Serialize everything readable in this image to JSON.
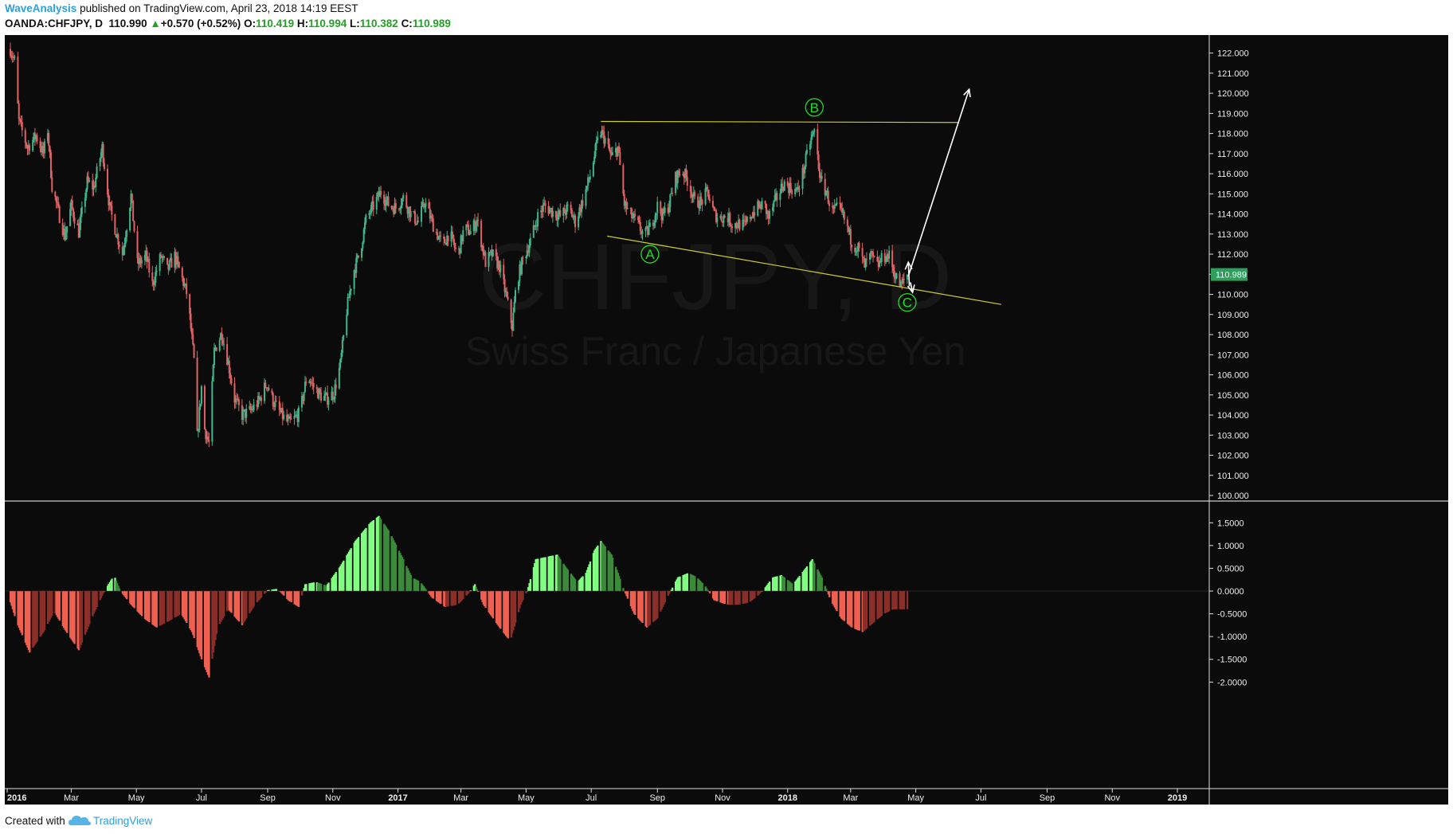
{
  "header": {
    "author": "WaveAnalysis",
    "published_text": "published on TradingView.com, April 23, 2018 14:19 EEST",
    "symbol": "OANDA:CHFJPY, D",
    "price": "110.990",
    "change": "+0.570 (+0.52%)",
    "o_label": "O:",
    "o_value": "110.419",
    "h_label": "H:",
    "h_value": "110.994",
    "l_label": "L:",
    "l_value": "110.382",
    "c_label": "C:",
    "c_value": "110.989"
  },
  "watermark": {
    "symbol": "CHFJPY, D",
    "description": "Swiss Franc / Japanese Yen"
  },
  "footer": {
    "created_with": "Created with",
    "brand": "TradingView"
  },
  "colors": {
    "background": "#0b0b0b",
    "up_candle": "#3fb68b",
    "down_candle": "#e06264",
    "trendline": "#cccc33",
    "wave_label": "#22dd22",
    "hist_pos_bright": "#80ff80",
    "hist_pos_dark": "#3b8b3b",
    "hist_neg_bright": "#f06050",
    "hist_neg_dark": "#8b2e28",
    "last_price_badge": "#2e9e5c"
  },
  "chart_data": [
    {
      "type": "candlestick",
      "symbol": "OANDA:CHFJPY",
      "timeframe": "D",
      "ylim": [
        100,
        122.5
      ],
      "y_ticks": [
        "122.000",
        "121.000",
        "120.000",
        "119.000",
        "118.000",
        "117.000",
        "116.000",
        "115.000",
        "114.000",
        "113.000",
        "112.000",
        "111.000",
        "110.000",
        "109.000",
        "108.000",
        "107.000",
        "106.000",
        "105.000",
        "104.000",
        "103.000",
        "102.000",
        "101.000",
        "100.000"
      ],
      "last_price": "110.989",
      "x_ticks": [
        "2016",
        "Mar",
        "May",
        "Jul",
        "Sep",
        "Nov",
        "2017",
        "Mar",
        "May",
        "Jul",
        "Sep",
        "Nov",
        "2018",
        "Mar",
        "May",
        "Jul",
        "Sep",
        "Nov",
        "2019"
      ],
      "x_tick_dates": [
        "2016-01-01",
        "2016-03-01",
        "2016-05-01",
        "2016-07-01",
        "2016-09-01",
        "2016-11-01",
        "2017-01-01",
        "2017-03-01",
        "2017-05-01",
        "2017-07-01",
        "2017-09-01",
        "2017-11-01",
        "2018-01-01",
        "2018-03-01",
        "2018-05-01",
        "2018-07-01",
        "2018-09-01",
        "2018-11-01",
        "2019-01-01"
      ],
      "bold_ticks": [
        "2016",
        "2017",
        "2018",
        "2019"
      ],
      "close_path": [
        [
          "2016-01-04",
          122.2
        ],
        [
          "2016-01-08",
          121.6
        ],
        [
          "2016-01-12",
          118.6
        ],
        [
          "2016-01-20",
          117.3
        ],
        [
          "2016-01-28",
          117.9
        ],
        [
          "2016-02-04",
          117.0
        ],
        [
          "2016-02-08",
          118.2
        ],
        [
          "2016-02-12",
          115.4
        ],
        [
          "2016-02-18",
          114.1
        ],
        [
          "2016-02-24",
          112.9
        ],
        [
          "2016-03-01",
          114.4
        ],
        [
          "2016-03-08",
          113.1
        ],
        [
          "2016-03-16",
          115.6
        ],
        [
          "2016-03-22",
          115.3
        ],
        [
          "2016-03-30",
          117.3
        ],
        [
          "2016-04-06",
          114.3
        ],
        [
          "2016-04-12",
          113.1
        ],
        [
          "2016-04-18",
          112.0
        ],
        [
          "2016-04-26",
          114.9
        ],
        [
          "2016-05-02",
          111.5
        ],
        [
          "2016-05-10",
          111.9
        ],
        [
          "2016-05-16",
          110.5
        ],
        [
          "2016-05-24",
          111.9
        ],
        [
          "2016-05-30",
          111.2
        ],
        [
          "2016-06-06",
          111.9
        ],
        [
          "2016-06-14",
          110.6
        ],
        [
          "2016-06-18",
          109.9
        ],
        [
          "2016-06-24",
          106.7
        ],
        [
          "2016-06-27",
          102.9
        ],
        [
          "2016-07-01",
          105.4
        ],
        [
          "2016-07-04",
          103.3
        ],
        [
          "2016-07-08",
          102.6
        ],
        [
          "2016-07-13",
          107.2
        ],
        [
          "2016-07-20",
          108.1
        ],
        [
          "2016-07-26",
          106.6
        ],
        [
          "2016-08-01",
          104.8
        ],
        [
          "2016-08-08",
          104.0
        ],
        [
          "2016-08-16",
          104.2
        ],
        [
          "2016-08-24",
          104.7
        ],
        [
          "2016-08-31",
          105.6
        ],
        [
          "2016-09-06",
          104.7
        ],
        [
          "2016-09-14",
          104.0
        ],
        [
          "2016-09-20",
          103.6
        ],
        [
          "2016-09-24",
          103.7
        ],
        [
          "2016-10-01",
          104.1
        ],
        [
          "2016-10-08",
          106.0
        ],
        [
          "2016-10-14",
          105.4
        ],
        [
          "2016-10-20",
          105.0
        ],
        [
          "2016-10-26",
          104.8
        ],
        [
          "2016-11-02",
          105.1
        ],
        [
          "2016-11-08",
          106.5
        ],
        [
          "2016-11-14",
          109.2
        ],
        [
          "2016-11-20",
          111.1
        ],
        [
          "2016-11-26",
          112.0
        ],
        [
          "2016-12-02",
          113.7
        ],
        [
          "2016-12-10",
          114.5
        ],
        [
          "2016-12-16",
          115.1
        ],
        [
          "2016-12-24",
          114.4
        ],
        [
          "2016-12-30",
          114.3
        ],
        [
          "2017-01-06",
          114.8
        ],
        [
          "2017-01-14",
          113.9
        ],
        [
          "2017-01-20",
          113.6
        ],
        [
          "2017-01-26",
          114.6
        ],
        [
          "2017-02-04",
          113.3
        ],
        [
          "2017-02-12",
          112.4
        ],
        [
          "2017-02-18",
          113.1
        ],
        [
          "2017-02-26",
          111.9
        ],
        [
          "2017-03-04",
          113.3
        ],
        [
          "2017-03-10",
          113.1
        ],
        [
          "2017-03-16",
          113.7
        ],
        [
          "2017-03-24",
          111.6
        ],
        [
          "2017-03-30",
          112.0
        ],
        [
          "2017-04-06",
          111.4
        ],
        [
          "2017-04-12",
          110.0
        ],
        [
          "2017-04-18",
          108.4
        ],
        [
          "2017-04-22",
          110.6
        ],
        [
          "2017-04-28",
          111.7
        ],
        [
          "2017-05-06",
          112.8
        ],
        [
          "2017-05-12",
          113.9
        ],
        [
          "2017-05-18",
          114.4
        ],
        [
          "2017-05-26",
          114.1
        ],
        [
          "2017-06-02",
          113.9
        ],
        [
          "2017-06-10",
          114.3
        ],
        [
          "2017-06-16",
          113.6
        ],
        [
          "2017-06-24",
          114.8
        ],
        [
          "2017-06-30",
          115.9
        ],
        [
          "2017-07-06",
          117.4
        ],
        [
          "2017-07-10",
          118.1
        ],
        [
          "2017-07-14",
          117.7
        ],
        [
          "2017-07-20",
          116.8
        ],
        [
          "2017-07-26",
          117.3
        ],
        [
          "2017-08-01",
          114.5
        ],
        [
          "2017-08-06",
          114.0
        ],
        [
          "2017-08-12",
          113.6
        ],
        [
          "2017-08-20",
          112.9
        ],
        [
          "2017-08-26",
          113.4
        ],
        [
          "2017-09-01",
          114.4
        ],
        [
          "2017-09-06",
          113.9
        ],
        [
          "2017-09-12",
          114.5
        ],
        [
          "2017-09-18",
          115.8
        ],
        [
          "2017-09-24",
          116.2
        ],
        [
          "2017-09-30",
          115.6
        ],
        [
          "2017-10-06",
          114.6
        ],
        [
          "2017-10-12",
          114.6
        ],
        [
          "2017-10-18",
          115.1
        ],
        [
          "2017-10-24",
          114.0
        ],
        [
          "2017-10-30",
          113.8
        ],
        [
          "2017-11-05",
          113.9
        ],
        [
          "2017-11-10",
          113.5
        ],
        [
          "2017-11-16",
          113.5
        ],
        [
          "2017-11-22",
          113.4
        ],
        [
          "2017-11-28",
          114.0
        ],
        [
          "2017-12-04",
          114.3
        ],
        [
          "2017-12-10",
          114.5
        ],
        [
          "2017-12-14",
          113.8
        ],
        [
          "2017-12-20",
          114.6
        ],
        [
          "2017-12-28",
          115.5
        ],
        [
          "2018-01-04",
          115.3
        ],
        [
          "2018-01-10",
          115.1
        ],
        [
          "2018-01-16",
          116.2
        ],
        [
          "2018-01-22",
          117.6
        ],
        [
          "2018-01-26",
          118.1
        ],
        [
          "2018-02-01",
          115.6
        ],
        [
          "2018-02-06",
          115.1
        ],
        [
          "2018-02-12",
          114.1
        ],
        [
          "2018-02-18",
          114.3
        ],
        [
          "2018-02-24",
          113.6
        ],
        [
          "2018-03-02",
          112.6
        ],
        [
          "2018-03-08",
          112.3
        ],
        [
          "2018-03-14",
          111.4
        ],
        [
          "2018-03-20",
          111.9
        ],
        [
          "2018-03-26",
          111.4
        ],
        [
          "2018-04-01",
          111.9
        ],
        [
          "2018-04-06",
          111.9
        ],
        [
          "2018-04-12",
          110.9
        ],
        [
          "2018-04-17",
          110.4
        ],
        [
          "2018-04-23",
          110.989
        ]
      ],
      "annotations": {
        "wave_labels": [
          {
            "text": "A",
            "date": "2017-08-25",
            "price": 112.0
          },
          {
            "text": "B",
            "date": "2018-01-26",
            "price": 119.3
          },
          {
            "text": "C",
            "date": "2018-04-23",
            "price": 109.6
          }
        ],
        "resistance_line": {
          "from": {
            "date": "2017-07-10",
            "price": 118.6
          },
          "to": {
            "date": "2018-06-10",
            "price": 118.55
          }
        },
        "support_line": {
          "from": {
            "date": "2017-07-16",
            "price": 112.9
          },
          "to": {
            "date": "2018-07-20",
            "price": 109.5
          }
        },
        "projection_arrow": {
          "from": {
            "date": "2018-04-24",
            "price": 110.9
          },
          "to": {
            "date": "2018-06-20",
            "price": 120.2
          }
        },
        "small_arrows": [
          {
            "from": {
              "date": "2018-04-25",
              "price": 110.4
            },
            "to": {
              "date": "2018-04-24",
              "price": 111.6
            }
          },
          {
            "from": {
              "date": "2018-04-26",
              "price": 110.6
            },
            "to": {
              "date": "2018-04-28",
              "price": 110.1
            }
          }
        ]
      }
    },
    {
      "type": "histogram",
      "name": "",
      "ylim": [
        -2.1,
        1.75
      ],
      "y_ticks": [
        "1.5000",
        "1.0000",
        "0.5000",
        "0.0000",
        "-0.5000",
        "-1.0000",
        "-1.5000",
        "-2.0000"
      ],
      "x_ticks_shared": true,
      "values_path": [
        [
          "2016-01-02",
          -0.1
        ],
        [
          "2016-01-10",
          -0.7
        ],
        [
          "2016-01-22",
          -1.35
        ],
        [
          "2016-02-04",
          -0.9
        ],
        [
          "2016-02-14",
          -0.45
        ],
        [
          "2016-02-24",
          -0.85
        ],
        [
          "2016-03-08",
          -1.3
        ],
        [
          "2016-03-22",
          -0.5
        ],
        [
          "2016-04-01",
          0.0
        ],
        [
          "2016-04-10",
          0.35
        ],
        [
          "2016-04-16",
          0.0
        ],
        [
          "2016-04-26",
          -0.3
        ],
        [
          "2016-05-08",
          -0.6
        ],
        [
          "2016-05-20",
          -0.8
        ],
        [
          "2016-06-01",
          -0.65
        ],
        [
          "2016-06-12",
          -0.5
        ],
        [
          "2016-06-22",
          -0.9
        ],
        [
          "2016-07-01",
          -1.5
        ],
        [
          "2016-07-08",
          -1.9
        ],
        [
          "2016-07-16",
          -0.8
        ],
        [
          "2016-07-26",
          -0.4
        ],
        [
          "2016-08-08",
          -0.75
        ],
        [
          "2016-08-20",
          -0.3
        ],
        [
          "2016-09-01",
          0.02
        ],
        [
          "2016-09-10",
          0.05
        ],
        [
          "2016-09-20",
          -0.2
        ],
        [
          "2016-09-30",
          -0.35
        ],
        [
          "2016-10-06",
          0.15
        ],
        [
          "2016-10-16",
          0.2
        ],
        [
          "2016-10-26",
          0.12
        ],
        [
          "2016-11-08",
          0.55
        ],
        [
          "2016-11-22",
          1.1
        ],
        [
          "2016-12-06",
          1.5
        ],
        [
          "2016-12-14",
          1.65
        ],
        [
          "2016-12-24",
          1.3
        ],
        [
          "2017-01-06",
          0.7
        ],
        [
          "2017-01-14",
          0.3
        ],
        [
          "2017-01-22",
          0.2
        ],
        [
          "2017-02-02",
          -0.15
        ],
        [
          "2017-02-14",
          -0.35
        ],
        [
          "2017-02-26",
          -0.3
        ],
        [
          "2017-03-08",
          -0.05
        ],
        [
          "2017-03-14",
          0.15
        ],
        [
          "2017-03-22",
          -0.3
        ],
        [
          "2017-04-06",
          -0.8
        ],
        [
          "2017-04-16",
          -1.1
        ],
        [
          "2017-04-26",
          -0.3
        ],
        [
          "2017-05-02",
          0.0
        ],
        [
          "2017-05-10",
          0.7
        ],
        [
          "2017-05-20",
          0.75
        ],
        [
          "2017-05-30",
          0.8
        ],
        [
          "2017-06-08",
          0.5
        ],
        [
          "2017-06-18",
          0.2
        ],
        [
          "2017-06-26",
          0.4
        ],
        [
          "2017-07-04",
          0.9
        ],
        [
          "2017-07-10",
          1.1
        ],
        [
          "2017-07-20",
          0.8
        ],
        [
          "2017-08-01",
          0.0
        ],
        [
          "2017-08-10",
          -0.5
        ],
        [
          "2017-08-22",
          -0.8
        ],
        [
          "2017-09-01",
          -0.6
        ],
        [
          "2017-09-10",
          -0.15
        ],
        [
          "2017-09-20",
          0.3
        ],
        [
          "2017-09-30",
          0.4
        ],
        [
          "2017-10-08",
          0.3
        ],
        [
          "2017-10-16",
          0.1
        ],
        [
          "2017-10-24",
          -0.2
        ],
        [
          "2017-11-05",
          -0.3
        ],
        [
          "2017-11-16",
          -0.3
        ],
        [
          "2017-11-26",
          -0.25
        ],
        [
          "2017-12-04",
          -0.1
        ],
        [
          "2017-12-10",
          0.05
        ],
        [
          "2017-12-18",
          0.3
        ],
        [
          "2017-12-26",
          0.35
        ],
        [
          "2018-01-06",
          0.15
        ],
        [
          "2018-01-16",
          0.45
        ],
        [
          "2018-01-24",
          0.7
        ],
        [
          "2018-02-02",
          0.3
        ],
        [
          "2018-02-10",
          -0.2
        ],
        [
          "2018-02-20",
          -0.6
        ],
        [
          "2018-03-02",
          -0.8
        ],
        [
          "2018-03-12",
          -0.9
        ],
        [
          "2018-03-22",
          -0.7
        ],
        [
          "2018-04-01",
          -0.5
        ],
        [
          "2018-04-10",
          -0.4
        ],
        [
          "2018-04-23",
          -0.4
        ]
      ]
    }
  ]
}
